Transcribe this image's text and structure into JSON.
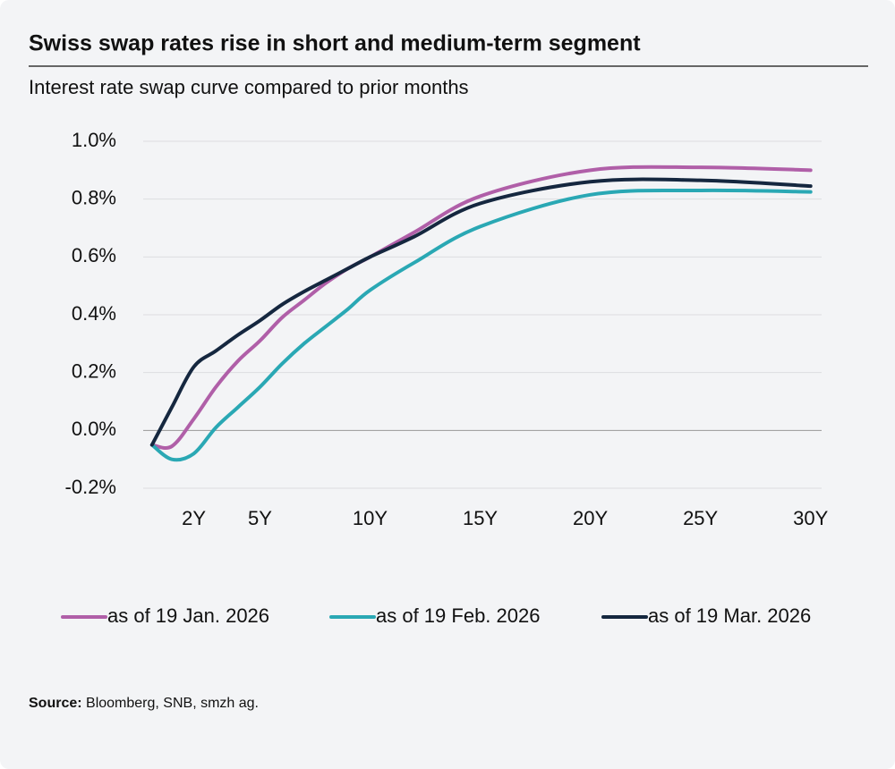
{
  "chart_data": {
    "type": "line",
    "title": "Swiss swap rates rise in short and medium-term segment",
    "subtitle": "Interest rate swap curve compared to prior months",
    "x": [
      0.1,
      1,
      2,
      3,
      4,
      5,
      6,
      7,
      8,
      9,
      10,
      12,
      15,
      20,
      25,
      30
    ],
    "series": [
      {
        "name": "as of 19 Jan. 2026",
        "color": "#b05fa8",
        "values": [
          -0.05,
          -0.055,
          0.04,
          0.15,
          0.24,
          0.31,
          0.39,
          0.45,
          0.51,
          0.56,
          0.6,
          0.685,
          0.81,
          0.9,
          0.91,
          0.9
        ]
      },
      {
        "name": "as of 19 Feb. 2026",
        "color": "#2aa8b4",
        "values": [
          -0.05,
          -0.1,
          -0.08,
          0.01,
          0.08,
          0.15,
          0.23,
          0.3,
          0.36,
          0.42,
          0.485,
          0.58,
          0.705,
          0.815,
          0.83,
          0.825
        ]
      },
      {
        "name": "as of 19 Mar. 2026",
        "color": "#15273f",
        "values": [
          -0.05,
          0.08,
          0.22,
          0.275,
          0.33,
          0.38,
          0.435,
          0.48,
          0.52,
          0.56,
          0.6,
          0.67,
          0.785,
          0.86,
          0.865,
          0.845
        ]
      }
    ],
    "xlim": [
      -0.3,
      30.5
    ],
    "xticks": [
      {
        "value": 2,
        "label": "2Y"
      },
      {
        "value": 5,
        "label": "5Y"
      },
      {
        "value": 10,
        "label": "10Y"
      },
      {
        "value": 15,
        "label": "15Y"
      },
      {
        "value": 20,
        "label": "20Y"
      },
      {
        "value": 25,
        "label": "25Y"
      },
      {
        "value": 30,
        "label": "30Y"
      }
    ],
    "ylim": [
      -0.2,
      1.0
    ],
    "yticks": [
      {
        "value": -0.2,
        "label": "-0.2%"
      },
      {
        "value": 0.0,
        "label": "0.0%"
      },
      {
        "value": 0.2,
        "label": "0.2%"
      },
      {
        "value": 0.4,
        "label": "0.4%"
      },
      {
        "value": 0.6,
        "label": "0.6%"
      },
      {
        "value": 0.8,
        "label": "0.8%"
      },
      {
        "value": 1.0,
        "label": "1.0%"
      }
    ],
    "grid": true,
    "legend": "bottom",
    "source_label": "Source:",
    "source_text": "Bloomberg, SNB, smzh ag."
  }
}
